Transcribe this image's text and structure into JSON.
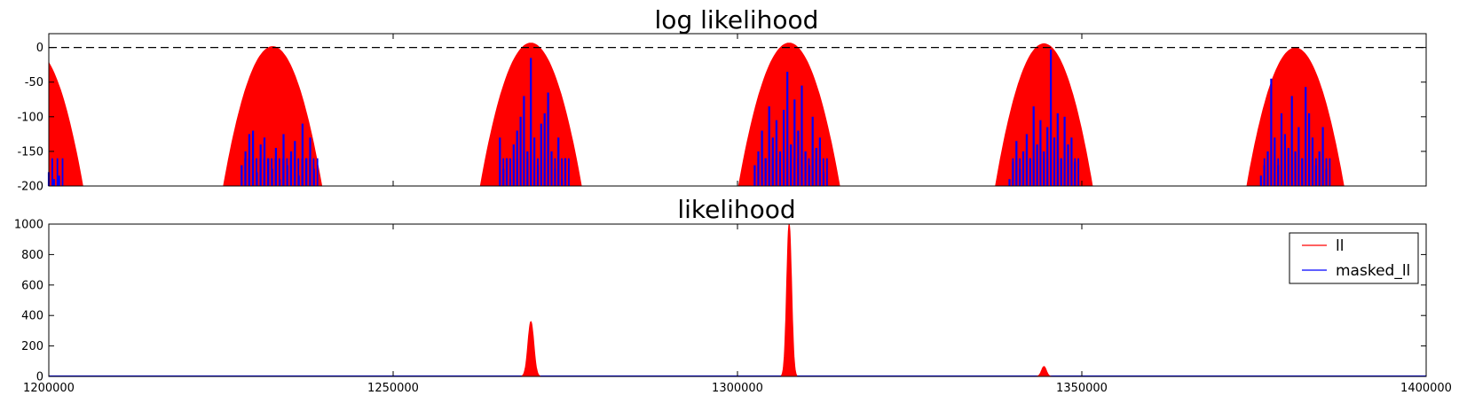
{
  "chart_data": [
    {
      "type": "bar",
      "title": "log likelihood",
      "xlabel": "",
      "ylabel": "",
      "xlim": [
        1200000,
        1400000
      ],
      "ylim": [
        -200,
        20
      ],
      "yticks": [
        -200,
        -150,
        -100,
        -50,
        0
      ],
      "ytick_labels": [
        "-200",
        "-150",
        "-100",
        "-50",
        "0"
      ],
      "reference_line": {
        "y": 0,
        "style": "dashed",
        "color": "#000000"
      },
      "grid": false,
      "series": [
        {
          "key": "ll",
          "color": "#ff0000",
          "peaks": [
            {
              "center": 1198000,
              "peak": -5,
              "half_width": 7000
            },
            {
              "center": 1232500,
              "peak": 2,
              "half_width": 7200
            },
            {
              "center": 1270000,
              "peak": 7,
              "half_width": 7400
            },
            {
              "center": 1307500,
              "peak": 7,
              "half_width": 7400
            },
            {
              "center": 1344500,
              "peak": 6,
              "half_width": 7100
            },
            {
              "center": 1381000,
              "peak": 0,
              "half_width": 7100
            }
          ]
        },
        {
          "key": "masked_ll",
          "color": "#0000ff",
          "clusters": [
            {
              "x_from": 1200000,
              "x_to": 1201500,
              "values": [
                -180,
                -190,
                -185
              ]
            },
            {
              "x_from": 1228000,
              "x_to": 1238500,
              "values": [
                -170,
                -150,
                -125,
                -120,
                -180,
                -140,
                -130,
                -160,
                -175,
                -145,
                -190,
                -125,
                -170,
                -150,
                -135,
                -185,
                -110,
                -160,
                -130,
                -175
              ]
            },
            {
              "x_from": 1265500,
              "x_to": 1275000,
              "values": [
                -130,
                -175,
                -160,
                -190,
                -140,
                -120,
                -100,
                -70,
                -150,
                -15,
                -130,
                -170,
                -110,
                -95,
                -65,
                -150,
                -175,
                -130,
                -190,
                -160
              ]
            },
            {
              "x_from": 1302500,
              "x_to": 1312500,
              "values": [
                -170,
                -150,
                -120,
                -160,
                -85,
                -130,
                -105,
                -150,
                -90,
                -35,
                -140,
                -75,
                -120,
                -55,
                -150,
                -170,
                -100,
                -145,
                -130,
                -180
              ]
            },
            {
              "x_from": 1339500,
              "x_to": 1349000,
              "values": [
                -190,
                -165,
                -135,
                -175,
                -150,
                -125,
                -160,
                -85,
                -140,
                -105,
                -150,
                -115,
                -3,
                -130,
                -95,
                -160,
                -100,
                -140,
                -130,
                -165
              ]
            },
            {
              "x_from": 1376000,
              "x_to": 1385500,
              "values": [
                -185,
                -170,
                -150,
                -45,
                -130,
                -170,
                -95,
                -125,
                -145,
                -70,
                -150,
                -115,
                -160,
                -57,
                -95,
                -130,
                -170,
                -150,
                -115,
                -175
              ]
            }
          ]
        }
      ]
    },
    {
      "type": "bar",
      "title": "likelihood",
      "xlabel": "",
      "ylabel": "",
      "xlim": [
        1200000,
        1400000
      ],
      "ylim": [
        0,
        1000
      ],
      "xticks": [
        1200000,
        1250000,
        1300000,
        1350000,
        1400000
      ],
      "xtick_labels": [
        "1200000",
        "1250000",
        "1300000",
        "1350000",
        "1400000"
      ],
      "yticks": [
        0,
        200,
        400,
        600,
        800,
        1000
      ],
      "ytick_labels": [
        "0",
        "200",
        "400",
        "600",
        "800",
        "1000"
      ],
      "grid": false,
      "legend_position": "upper right",
      "legend": [
        {
          "label": "ll",
          "color": "#ff0000"
        },
        {
          "label": "masked_ll",
          "color": "#0000ff"
        }
      ],
      "series": [
        {
          "key": "ll",
          "color": "#ff0000",
          "peaks": [
            {
              "center": 1270000,
              "peak": 360,
              "half_width": 600
            },
            {
              "center": 1307500,
              "peak": 1000,
              "half_width": 500
            },
            {
              "center": 1344500,
              "peak": 65,
              "half_width": 500
            }
          ]
        },
        {
          "key": "masked_ll",
          "color": "#0000ff",
          "baseline_value": 0
        }
      ]
    }
  ]
}
